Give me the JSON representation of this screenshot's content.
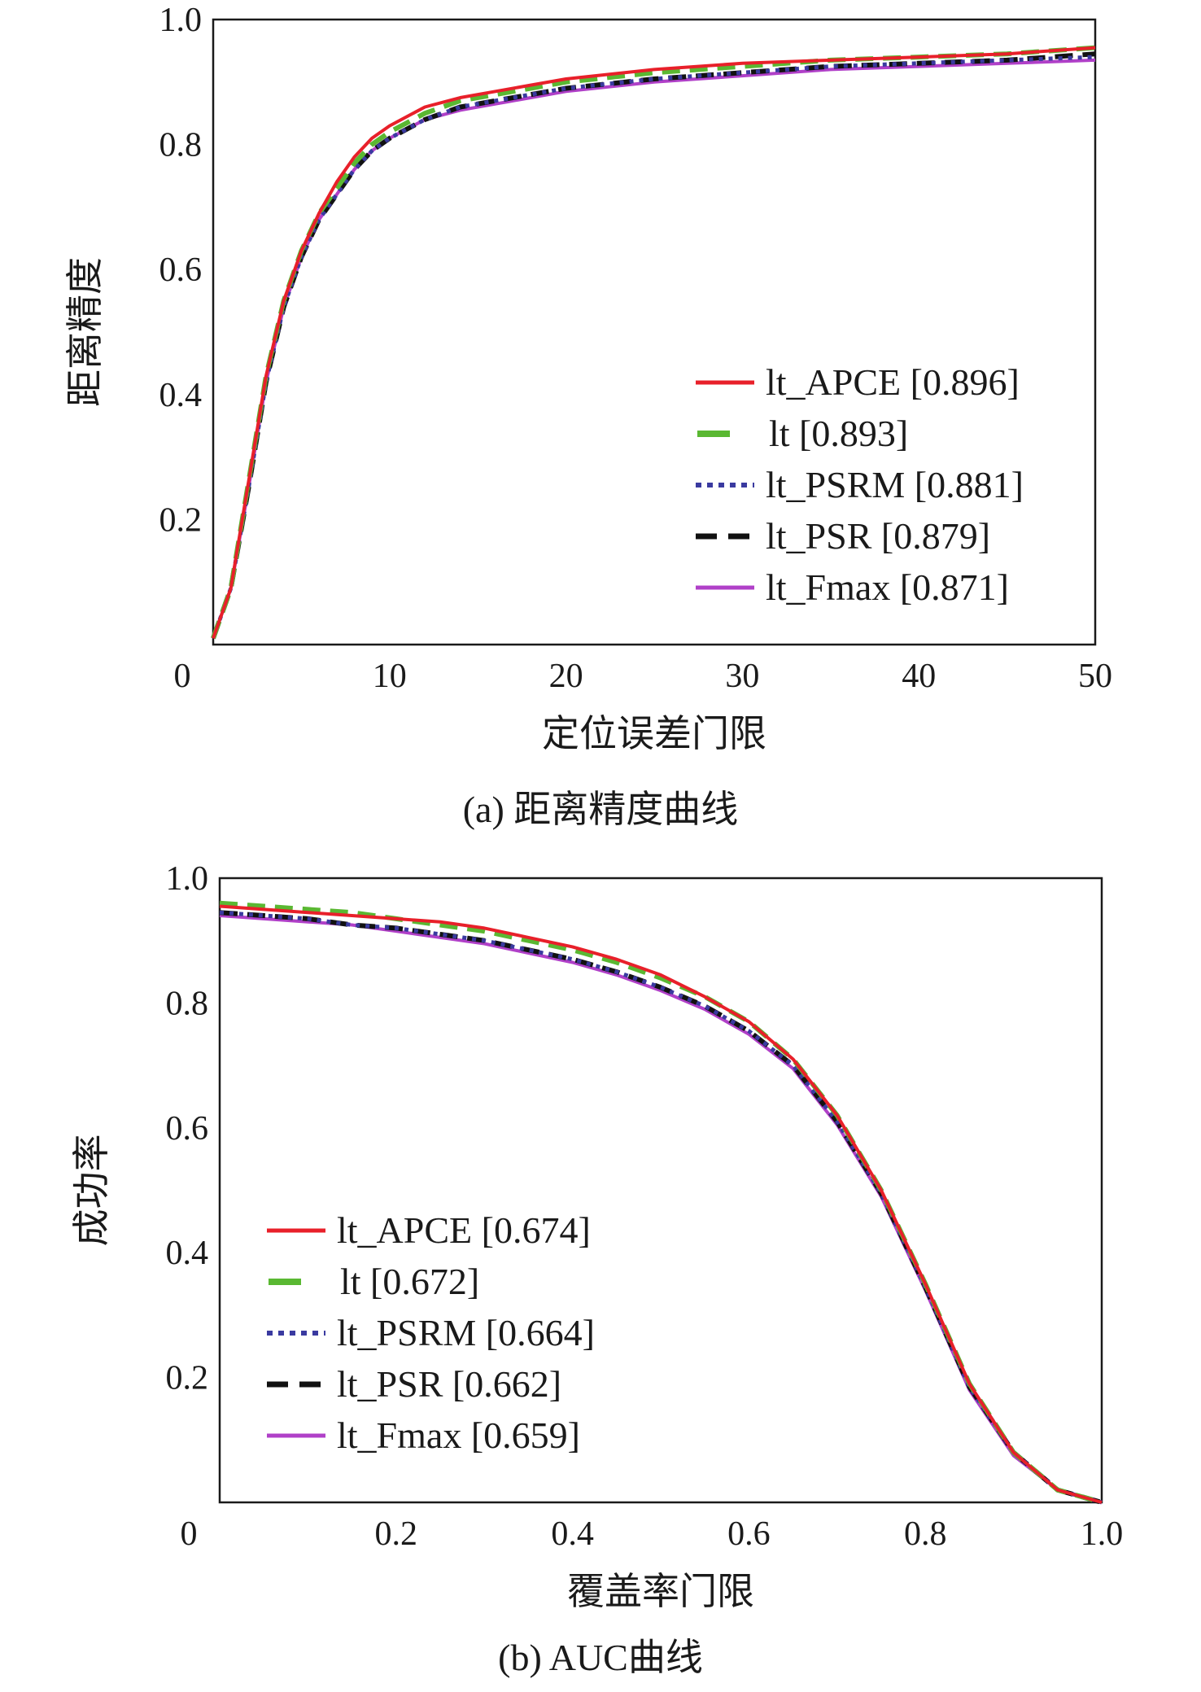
{
  "chart_data": [
    {
      "type": "line",
      "title": "",
      "caption": "(a) 距离精度曲线",
      "xlabel": "定位误差门限",
      "ylabel": "距离精度",
      "xlim": [
        0,
        50
      ],
      "ylim": [
        0,
        1.0
      ],
      "xticks": [
        "0",
        "10",
        "20",
        "30",
        "40",
        "50"
      ],
      "yticks": [
        "0.2",
        "0.4",
        "0.6",
        "0.8",
        "1.0"
      ],
      "xtick_values": [
        0,
        10,
        20,
        30,
        40,
        50
      ],
      "ytick_values": [
        0.2,
        0.4,
        0.6,
        0.8,
        1.0
      ],
      "legend_position": "lower-right",
      "x": [
        0,
        1,
        2,
        3,
        4,
        5,
        6,
        7,
        8,
        9,
        10,
        12,
        14,
        16,
        18,
        20,
        25,
        30,
        35,
        40,
        45,
        50
      ],
      "series": [
        {
          "name": "lt_APCE [0.896]",
          "color": "#e8202a",
          "style": "solid",
          "values": [
            0.01,
            0.09,
            0.26,
            0.43,
            0.55,
            0.63,
            0.69,
            0.74,
            0.78,
            0.81,
            0.83,
            0.86,
            0.875,
            0.885,
            0.895,
            0.905,
            0.92,
            0.93,
            0.935,
            0.94,
            0.945,
            0.955
          ]
        },
        {
          "name": "lt [0.893]",
          "color": "#5ab832",
          "style": "dashed",
          "values": [
            0.01,
            0.09,
            0.26,
            0.43,
            0.55,
            0.63,
            0.69,
            0.73,
            0.77,
            0.8,
            0.82,
            0.85,
            0.87,
            0.88,
            0.89,
            0.9,
            0.915,
            0.925,
            0.935,
            0.94,
            0.945,
            0.955
          ]
        },
        {
          "name": "lt_PSRM [0.881]",
          "color": "#3a3aa0",
          "style": "dotted",
          "values": [
            0.01,
            0.09,
            0.25,
            0.42,
            0.54,
            0.62,
            0.68,
            0.72,
            0.76,
            0.79,
            0.81,
            0.84,
            0.86,
            0.87,
            0.88,
            0.89,
            0.905,
            0.915,
            0.925,
            0.93,
            0.935,
            0.94
          ]
        },
        {
          "name": "lt_PSR [0.879]",
          "color": "#111111",
          "style": "dashed",
          "values": [
            0.01,
            0.09,
            0.25,
            0.42,
            0.54,
            0.62,
            0.68,
            0.72,
            0.76,
            0.79,
            0.81,
            0.84,
            0.86,
            0.87,
            0.88,
            0.89,
            0.905,
            0.915,
            0.925,
            0.93,
            0.935,
            0.945
          ]
        },
        {
          "name": "lt_Fmax [0.871]",
          "color": "#b040c8",
          "style": "solid",
          "values": [
            0.01,
            0.09,
            0.25,
            0.42,
            0.54,
            0.62,
            0.68,
            0.72,
            0.76,
            0.79,
            0.81,
            0.84,
            0.855,
            0.865,
            0.875,
            0.885,
            0.9,
            0.91,
            0.92,
            0.925,
            0.93,
            0.935
          ]
        }
      ]
    },
    {
      "type": "line",
      "title": "",
      "caption": "(b) AUC曲线",
      "xlabel": "覆盖率门限",
      "ylabel": "成功率",
      "xlim": [
        0,
        1.0
      ],
      "ylim": [
        0,
        1.0
      ],
      "xticks": [
        "0",
        "0.2",
        "0.4",
        "0.6",
        "0.8",
        "1.0"
      ],
      "yticks": [
        "0.2",
        "0.4",
        "0.6",
        "0.8",
        "1.0"
      ],
      "xtick_values": [
        0,
        0.2,
        0.4,
        0.6,
        0.8,
        1.0
      ],
      "ytick_values": [
        0.2,
        0.4,
        0.6,
        0.8,
        1.0
      ],
      "legend_position": "lower-left",
      "x": [
        0,
        0.05,
        0.1,
        0.15,
        0.2,
        0.25,
        0.3,
        0.35,
        0.4,
        0.45,
        0.5,
        0.55,
        0.6,
        0.65,
        0.7,
        0.75,
        0.8,
        0.85,
        0.9,
        0.95,
        1.0
      ],
      "series": [
        {
          "name": "lt_APCE [0.674]",
          "color": "#e8202a",
          "style": "solid",
          "values": [
            0.955,
            0.95,
            0.945,
            0.94,
            0.935,
            0.93,
            0.92,
            0.905,
            0.89,
            0.87,
            0.845,
            0.81,
            0.77,
            0.71,
            0.62,
            0.5,
            0.35,
            0.19,
            0.08,
            0.02,
            0.0
          ]
        },
        {
          "name": "lt [0.672]",
          "color": "#5ab832",
          "style": "dashed",
          "values": [
            0.96,
            0.955,
            0.95,
            0.945,
            0.935,
            0.925,
            0.915,
            0.9,
            0.885,
            0.865,
            0.84,
            0.81,
            0.77,
            0.71,
            0.62,
            0.5,
            0.35,
            0.19,
            0.08,
            0.02,
            0.0
          ]
        },
        {
          "name": "lt_PSRM [0.664]",
          "color": "#3a3aa0",
          "style": "dotted",
          "values": [
            0.945,
            0.94,
            0.935,
            0.925,
            0.92,
            0.91,
            0.9,
            0.885,
            0.87,
            0.85,
            0.825,
            0.795,
            0.755,
            0.7,
            0.61,
            0.495,
            0.345,
            0.185,
            0.08,
            0.02,
            0.0
          ]
        },
        {
          "name": "lt_PSR [0.662]",
          "color": "#111111",
          "style": "dashed",
          "values": [
            0.945,
            0.94,
            0.935,
            0.925,
            0.92,
            0.91,
            0.9,
            0.885,
            0.87,
            0.85,
            0.825,
            0.795,
            0.755,
            0.7,
            0.61,
            0.495,
            0.345,
            0.185,
            0.08,
            0.02,
            0.0
          ]
        },
        {
          "name": "lt_Fmax [0.659]",
          "color": "#b040c8",
          "style": "solid",
          "values": [
            0.94,
            0.935,
            0.93,
            0.925,
            0.915,
            0.905,
            0.895,
            0.88,
            0.865,
            0.845,
            0.82,
            0.79,
            0.75,
            0.695,
            0.605,
            0.49,
            0.34,
            0.18,
            0.075,
            0.02,
            0.0
          ]
        }
      ]
    }
  ]
}
